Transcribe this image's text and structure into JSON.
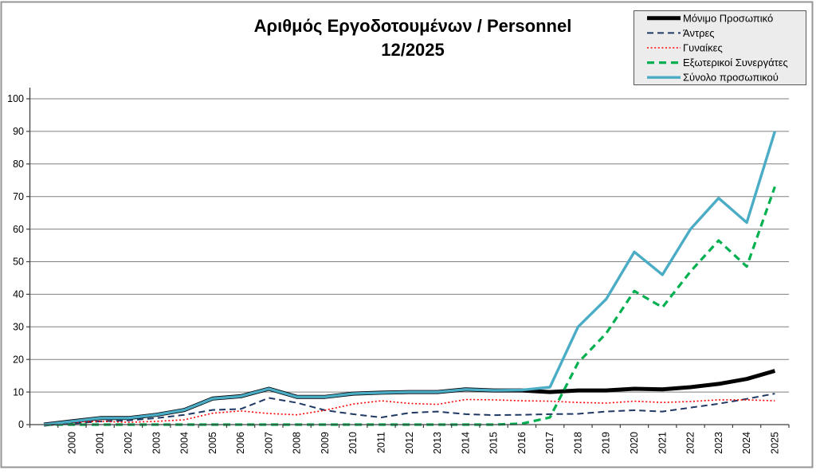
{
  "chart_data": {
    "type": "line",
    "title": "Αριθμός Εργοδοτουμένων / Personnel",
    "subtitle": "12/2025",
    "x_labels": [
      "",
      "2000",
      "2001",
      "2002",
      "2003",
      "2004",
      "2005",
      "2006",
      "2007",
      "2008",
      "2009",
      "2010",
      "2011",
      "2012",
      "2013",
      "2014",
      "2015",
      "2016",
      "2017",
      "2018",
      "2019",
      "2020",
      "2021",
      "2022",
      "2023",
      "2024",
      "2025"
    ],
    "ylim": [
      0,
      100
    ],
    "y_tick_step": 10,
    "grid": true,
    "legend_position": "top-right",
    "colors": {
      "grid": "#808080",
      "axis": "#404040",
      "frame": "#969696",
      "legend_fill": "#ECECEC",
      "legend_border": "#555555"
    },
    "series": [
      {
        "name": "Μόνιμο Προσωπικό",
        "color": "#000000",
        "style": "solid-thick",
        "values": [
          0,
          1,
          2,
          2,
          3,
          4.5,
          8,
          8.7,
          11,
          8.5,
          8.5,
          9.5,
          9.8,
          10,
          10,
          10.8,
          10.5,
          10.5,
          10,
          10.5,
          10.5,
          11,
          10.8,
          11.5,
          12.5,
          14,
          16.5
        ]
      },
      {
        "name": "Άντρες",
        "color": "#1F3864",
        "style": "dashed",
        "values": [
          0,
          0.3,
          1,
          1.3,
          2,
          3,
          4.5,
          4.8,
          8.2,
          6.7,
          4.4,
          3.2,
          2.2,
          3.6,
          4,
          3.2,
          2.9,
          3,
          3.2,
          3.3,
          4,
          4.4,
          4,
          5.2,
          6.4,
          7.9,
          9.5
        ]
      },
      {
        "name": "Γυναίκες",
        "color": "#FF0000",
        "style": "dotted",
        "values": [
          0,
          0.7,
          1,
          0.7,
          1,
          1.5,
          3.5,
          4.2,
          3.4,
          3,
          4.4,
          6.3,
          7.3,
          6.5,
          6.2,
          7.7,
          7.6,
          7.3,
          7.2,
          6.8,
          6.6,
          7.2,
          6.8,
          7.1,
          7.6,
          7.6,
          7.3
        ]
      },
      {
        "name": "Εξωτερικοί Συνεργάτες",
        "color": "#00B050",
        "style": "dashed-thick",
        "values": [
          0,
          0,
          0,
          0,
          0,
          0,
          0,
          0,
          0,
          0,
          0,
          0,
          0,
          0,
          0,
          0,
          0,
          0.3,
          2.2,
          19,
          28,
          41,
          36,
          47,
          56.5,
          48.5,
          73
        ]
      },
      {
        "name": "Σύνολο προσωπικού",
        "color": "#4BACC6",
        "style": "solid",
        "values": [
          0,
          1,
          2,
          2,
          3,
          4.5,
          8,
          8.7,
          11,
          8.5,
          8.5,
          9.5,
          9.8,
          10,
          10,
          10.8,
          10.5,
          10.6,
          11.5,
          30,
          38.5,
          53,
          46,
          60,
          69.5,
          62,
          90
        ]
      }
    ]
  }
}
